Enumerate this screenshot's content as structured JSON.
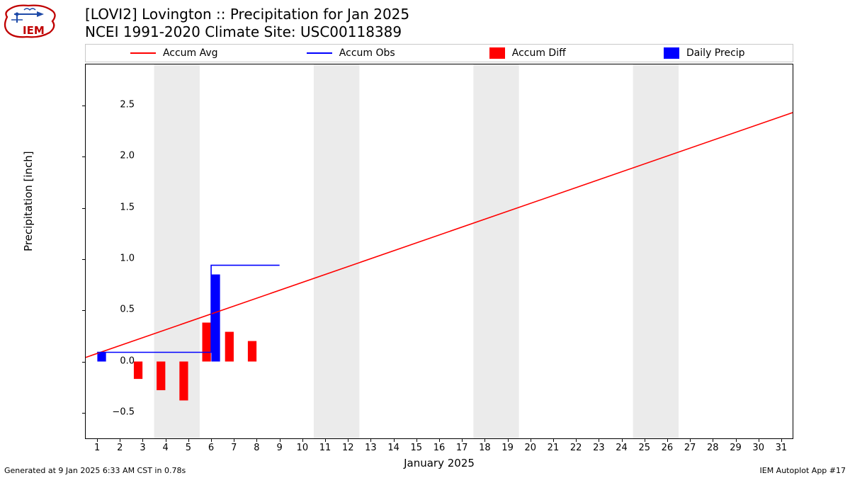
{
  "title_line1": "[LOVI2] Lovington :: Precipitation for Jan 2025",
  "title_line2": "NCEI 1991-2020 Climate Site: USC00118389",
  "ylabel": "Precipitation [inch]",
  "xlabel": "January 2025",
  "footer_left": "Generated at 9 Jan 2025 6:33 AM CST in 0.78s",
  "footer_right": "IEM Autoplot App #17",
  "legend": {
    "accum_avg": "Accum Avg",
    "accum_obs": "Accum Obs",
    "accum_diff": "Accum Diff",
    "daily_precip": "Daily Precip"
  },
  "colors": {
    "accum_avg": "#ff0000",
    "accum_obs": "#0000ff",
    "accum_diff": "#ff0000",
    "daily_precip": "#0000ff",
    "weekend_band": "#ebebeb",
    "axis": "#000000",
    "background": "#ffffff"
  },
  "chart": {
    "type": "mixed",
    "x_days": [
      1,
      2,
      3,
      4,
      5,
      6,
      7,
      8,
      9,
      10,
      11,
      12,
      13,
      14,
      15,
      16,
      17,
      18,
      19,
      20,
      21,
      22,
      23,
      24,
      25,
      26,
      27,
      28,
      29,
      30,
      31
    ],
    "xlim": [
      0.5,
      31.5
    ],
    "ylim": [
      -0.75,
      2.9
    ],
    "yticks": [
      -0.5,
      0.0,
      0.5,
      1.0,
      1.5,
      2.0,
      2.5
    ],
    "ytick_labels": [
      "−0.5",
      "0.0",
      "0.5",
      "1.0",
      "1.5",
      "2.0",
      "2.5"
    ],
    "weekend_bands": [
      [
        3.5,
        5.5
      ],
      [
        10.5,
        12.5
      ],
      [
        17.5,
        19.5
      ],
      [
        24.5,
        26.5
      ]
    ],
    "accum_avg_line": [
      [
        0.5,
        0.04
      ],
      [
        31.5,
        2.43
      ]
    ],
    "accum_obs_line": [
      [
        1,
        0.09
      ],
      [
        2,
        0.09
      ],
      [
        3,
        0.09
      ],
      [
        4,
        0.09
      ],
      [
        5,
        0.09
      ],
      [
        6,
        0.94
      ],
      [
        7,
        0.94
      ],
      [
        8,
        0.94
      ],
      [
        9,
        0.94
      ]
    ],
    "accum_diff_bars": [
      {
        "x": 1,
        "v": 0.0
      },
      {
        "x": 2,
        "v": 0.0
      },
      {
        "x": 3,
        "v": -0.17
      },
      {
        "x": 4,
        "v": -0.28
      },
      {
        "x": 5,
        "v": -0.38
      },
      {
        "x": 6,
        "v": 0.38
      },
      {
        "x": 7,
        "v": 0.29
      },
      {
        "x": 8,
        "v": 0.2
      }
    ],
    "daily_precip_bars": [
      {
        "x": 1,
        "v": 0.09
      },
      {
        "x": 2,
        "v": 0.0
      },
      {
        "x": 3,
        "v": 0.0
      },
      {
        "x": 4,
        "v": 0.0
      },
      {
        "x": 5,
        "v": 0.0
      },
      {
        "x": 6,
        "v": 0.85
      },
      {
        "x": 7,
        "v": 0.0
      },
      {
        "x": 8,
        "v": 0.0
      }
    ],
    "bar_half_width_red": 0.19,
    "bar_half_width_blue": 0.19,
    "line_width": 1.6
  },
  "logo": {
    "label": "IEM",
    "outline_color": "#c00000",
    "accent_color": "#1e4aa8"
  }
}
